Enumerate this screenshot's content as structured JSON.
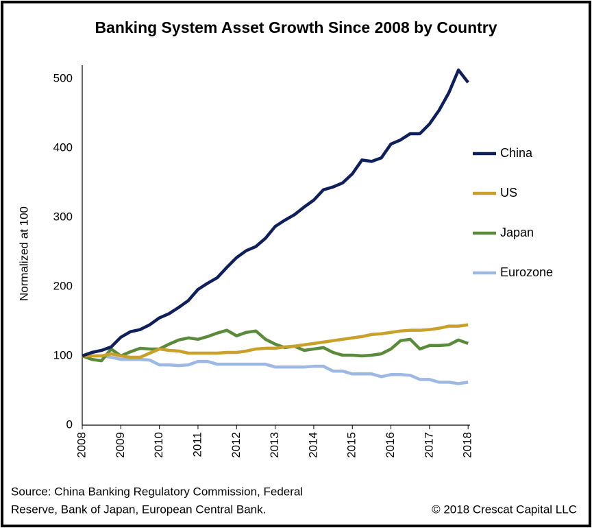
{
  "chart_data": {
    "type": "line",
    "title": "Banking System Asset Growth Since 2008 by Country",
    "ylabel": "Normalized at 100",
    "x": [
      2008,
      2008.25,
      2008.5,
      2008.75,
      2009,
      2009.25,
      2009.5,
      2009.75,
      2010,
      2010.25,
      2010.5,
      2010.75,
      2011,
      2011.25,
      2011.5,
      2011.75,
      2012,
      2012.25,
      2012.5,
      2012.75,
      2013,
      2013.25,
      2013.5,
      2013.75,
      2014,
      2014.25,
      2014.5,
      2014.75,
      2015,
      2015.25,
      2015.5,
      2015.75,
      2016,
      2016.25,
      2016.5,
      2016.75,
      2017,
      2017.25,
      2017.5,
      2017.75,
      2018
    ],
    "series": [
      {
        "name": "China",
        "color": "#0e1f5b",
        "values": [
          100,
          105,
          108,
          113,
          127,
          135,
          138,
          145,
          155,
          161,
          170,
          180,
          196,
          205,
          213,
          228,
          242,
          252,
          258,
          270,
          287,
          296,
          304,
          315,
          325,
          340,
          344,
          350,
          363,
          383,
          381,
          386,
          406,
          412,
          421,
          421,
          435,
          455,
          480,
          513,
          495
        ]
      },
      {
        "name": "US",
        "color": "#c9a02a",
        "values": [
          100,
          100,
          100,
          103,
          100,
          98,
          98,
          104,
          110,
          108,
          107,
          104,
          104,
          104,
          104,
          105,
          105,
          107,
          110,
          111,
          111,
          113,
          114,
          116,
          118,
          120,
          122,
          124,
          126,
          128,
          131,
          132,
          134,
          136,
          137,
          137,
          138,
          140,
          143,
          143,
          145
        ]
      },
      {
        "name": "Japan",
        "color": "#5a8b3a",
        "values": [
          100,
          95,
          93,
          110,
          100,
          106,
          111,
          110,
          110,
          117,
          123,
          126,
          124,
          128,
          133,
          137,
          129,
          134,
          136,
          124,
          117,
          112,
          114,
          108,
          110,
          112,
          105,
          101,
          101,
          100,
          101,
          103,
          110,
          122,
          124,
          110,
          115,
          115,
          116,
          123,
          118
        ]
      },
      {
        "name": "Eurozone",
        "color": "#9db9e3",
        "values": [
          100,
          100,
          100,
          98,
          95,
          95,
          95,
          94,
          87,
          87,
          86,
          87,
          92,
          92,
          88,
          88,
          88,
          88,
          88,
          88,
          84,
          84,
          84,
          84,
          85,
          85,
          78,
          78,
          74,
          74,
          74,
          70,
          73,
          73,
          72,
          66,
          66,
          62,
          62,
          60,
          62
        ]
      }
    ],
    "xlim": [
      2008,
      2018.05
    ],
    "xticks": [
      2008,
      2009,
      2010,
      2011,
      2012,
      2013,
      2014,
      2015,
      2016,
      2017,
      2018
    ],
    "ylim": [
      0,
      520
    ],
    "yticks": [
      0,
      100,
      200,
      300,
      400,
      500
    ],
    "legend": "right",
    "source": [
      "Source: China Banking Regulatory Commission, Federal",
      "Reserve, Bank of Japan, European Central Bank."
    ],
    "copyright": "© 2018 Crescat Capital LLC"
  }
}
